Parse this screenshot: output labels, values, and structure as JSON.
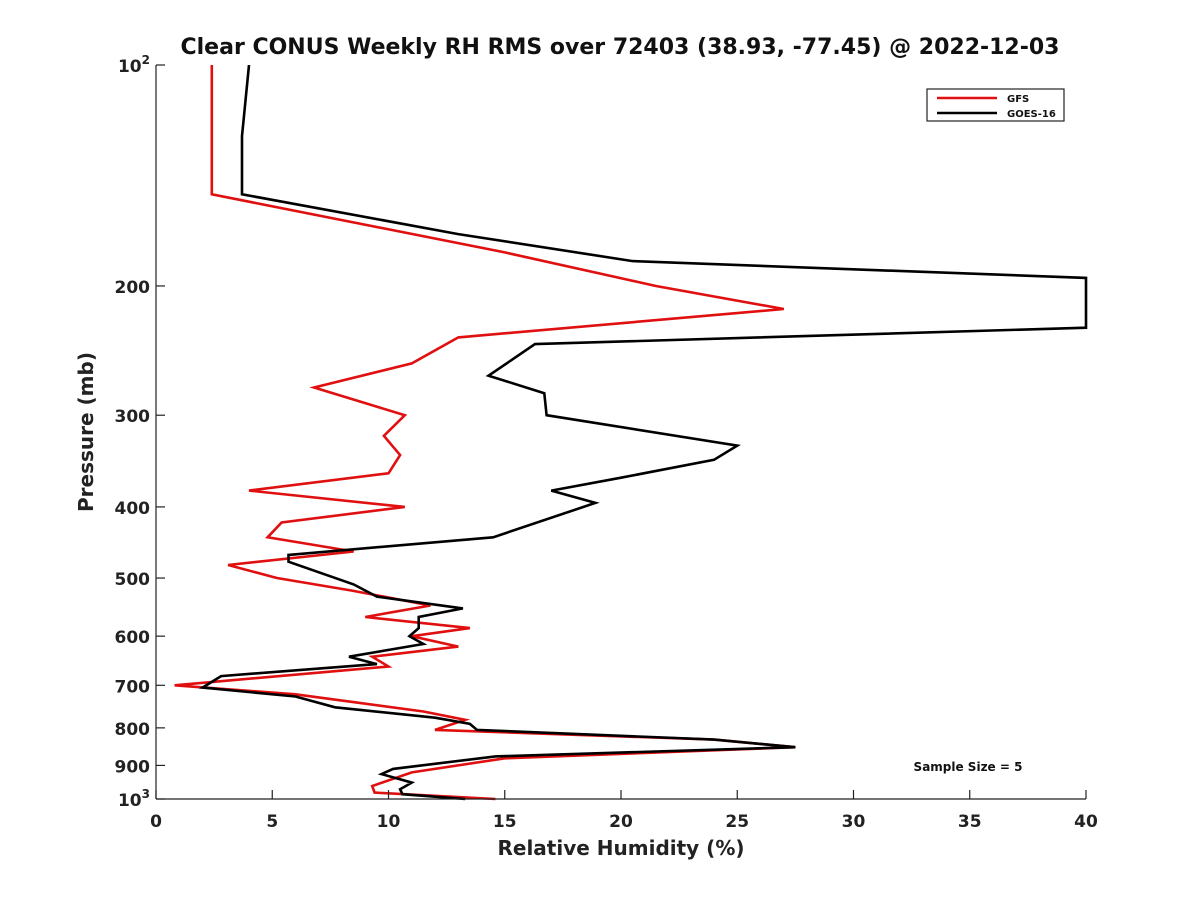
{
  "chart_data": {
    "type": "line",
    "title": "Clear CONUS Weekly RH RMS over 72403 (38.93, -77.45) @ 2022-12-03",
    "xlabel": "Relative Humidity (%)",
    "ylabel": "Pressure (mb)",
    "xlim": [
      0,
      40
    ],
    "ylim": [
      100,
      1000
    ],
    "y_scale": "log",
    "y_reversed": true,
    "x_ticks": [
      0,
      5,
      10,
      15,
      20,
      25,
      30,
      35,
      40
    ],
    "y_ticks": [
      {
        "value": 100,
        "label": "10",
        "sup": "2"
      },
      {
        "value": 200,
        "label": "200"
      },
      {
        "value": 300,
        "label": "300"
      },
      {
        "value": 400,
        "label": "400"
      },
      {
        "value": 500,
        "label": "500"
      },
      {
        "value": 600,
        "label": "600"
      },
      {
        "value": 700,
        "label": "700"
      },
      {
        "value": 800,
        "label": "800"
      },
      {
        "value": 900,
        "label": "900"
      },
      {
        "value": 1000,
        "label": "10",
        "sup": "3"
      }
    ],
    "grid": false,
    "legend_position": "top-right",
    "series": [
      {
        "name": "GFS",
        "color": "#e01010",
        "points": [
          [
            2.4,
            100
          ],
          [
            2.4,
            125
          ],
          [
            2.4,
            150
          ],
          [
            15.0,
            180
          ],
          [
            21.5,
            200
          ],
          [
            27.0,
            215
          ],
          [
            13.0,
            235
          ],
          [
            11.0,
            255
          ],
          [
            6.8,
            275
          ],
          [
            10.7,
            300
          ],
          [
            9.8,
            320
          ],
          [
            10.5,
            340
          ],
          [
            10.0,
            360
          ],
          [
            4.0,
            380
          ],
          [
            10.7,
            400
          ],
          [
            5.4,
            420
          ],
          [
            4.8,
            440
          ],
          [
            8.5,
            460
          ],
          [
            3.1,
            480
          ],
          [
            5.2,
            500
          ],
          [
            8.4,
            520
          ],
          [
            11.8,
            545
          ],
          [
            9.0,
            565
          ],
          [
            13.5,
            585
          ],
          [
            11.0,
            600
          ],
          [
            13.0,
            620
          ],
          [
            9.3,
            640
          ],
          [
            10.0,
            660
          ],
          [
            0.8,
            700
          ],
          [
            6.0,
            720
          ],
          [
            11.5,
            760
          ],
          [
            13.3,
            780
          ],
          [
            12.0,
            805
          ],
          [
            24.0,
            830
          ],
          [
            27.5,
            850
          ],
          [
            15.0,
            880
          ],
          [
            11.0,
            920
          ],
          [
            9.3,
            960
          ],
          [
            9.4,
            980
          ],
          [
            14.6,
            1000
          ]
        ]
      },
      {
        "name": "GOES-16",
        "color": "#000000",
        "points": [
          [
            4.0,
            100
          ],
          [
            3.7,
            125
          ],
          [
            3.7,
            150
          ],
          [
            13.0,
            170
          ],
          [
            20.5,
            185
          ],
          [
            40,
            195
          ],
          [
            40,
            228
          ],
          [
            16.3,
            240
          ],
          [
            14.3,
            265
          ],
          [
            16.7,
            280
          ],
          [
            16.8,
            300
          ],
          [
            25.0,
            330
          ],
          [
            24.0,
            345
          ],
          [
            20.0,
            365
          ],
          [
            17.0,
            380
          ],
          [
            18.9,
            395
          ],
          [
            14.5,
            440
          ],
          [
            5.7,
            465
          ],
          [
            5.7,
            475
          ],
          [
            8.5,
            510
          ],
          [
            9.5,
            530
          ],
          [
            13.2,
            550
          ],
          [
            11.3,
            565
          ],
          [
            11.3,
            585
          ],
          [
            10.9,
            600
          ],
          [
            11.5,
            615
          ],
          [
            8.3,
            640
          ],
          [
            9.5,
            655
          ],
          [
            2.8,
            680
          ],
          [
            2.0,
            705
          ],
          [
            6.0,
            725
          ],
          [
            7.7,
            750
          ],
          [
            12.0,
            775
          ],
          [
            13.5,
            790
          ],
          [
            13.8,
            805
          ],
          [
            24.0,
            830
          ],
          [
            27.5,
            850
          ],
          [
            14.6,
            875
          ],
          [
            10.2,
            910
          ],
          [
            9.7,
            925
          ],
          [
            11.0,
            950
          ],
          [
            10.5,
            970
          ],
          [
            10.6,
            985
          ],
          [
            13.3,
            1000
          ]
        ]
      }
    ],
    "annotations": [
      "Sample Size = 5"
    ]
  }
}
